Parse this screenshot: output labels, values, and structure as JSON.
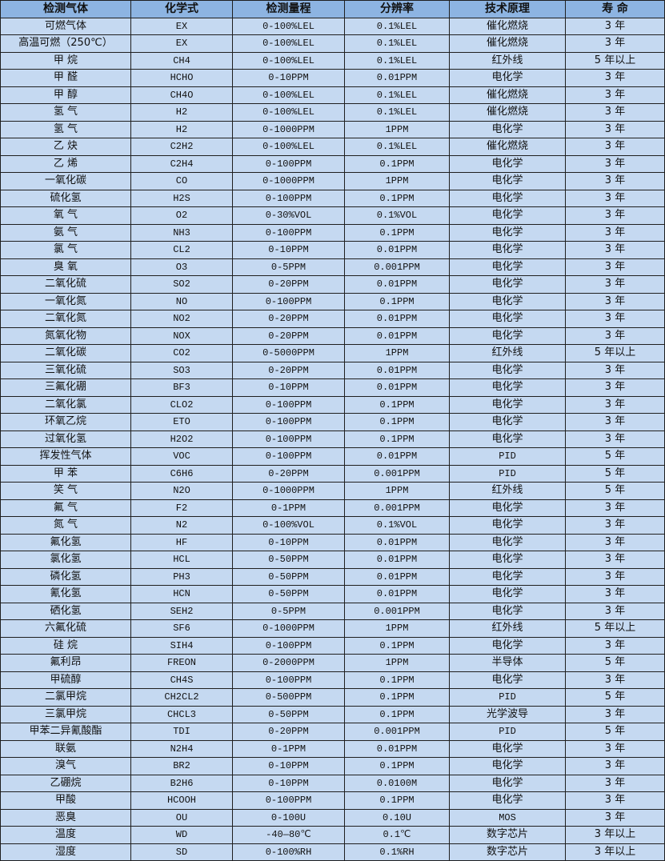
{
  "colors": {
    "header_bg": "#8db4e2",
    "row_bg": "#c5d9f1",
    "border": "#1f1f1f"
  },
  "table": {
    "headers": [
      "检测气体",
      "化学式",
      "检测量程",
      "分辨率",
      "技术原理",
      "寿 命"
    ],
    "rows": [
      [
        "可燃气体",
        "EX",
        "0-100%LEL",
        "0.1%LEL",
        "催化燃烧",
        "3 年"
      ],
      [
        "高温可燃（250℃）",
        "EX",
        "0-100%LEL",
        "0.1%LEL",
        "催化燃烧",
        "3 年"
      ],
      [
        "甲 烷",
        "CH4",
        "0-100%LEL",
        "0.1%LEL",
        "红外线",
        "5 年以上"
      ],
      [
        "甲 醛",
        "HCHO",
        "0-10PPM",
        "0.01PPM",
        "电化学",
        "3 年"
      ],
      [
        "甲 醇",
        "CH4O",
        "0-100%LEL",
        "0.1%LEL",
        "催化燃烧",
        "3 年"
      ],
      [
        "氢 气",
        "H2",
        "0-100%LEL",
        "0.1%LEL",
        "催化燃烧",
        "3 年"
      ],
      [
        "氢 气",
        "H2",
        "0-1000PPM",
        "1PPM",
        "电化学",
        "3 年"
      ],
      [
        "乙 炔",
        "C2H2",
        "0-100%LEL",
        "0.1%LEL",
        "催化燃烧",
        "3 年"
      ],
      [
        "乙 烯",
        "C2H4",
        "0-100PPM",
        "0.1PPM",
        "电化学",
        "3 年"
      ],
      [
        "一氧化碳",
        "CO",
        "0-1000PPM",
        "1PPM",
        "电化学",
        "3 年"
      ],
      [
        "硫化氢",
        "H2S",
        "0-100PPM",
        "0.1PPM",
        "电化学",
        "3 年"
      ],
      [
        "氧 气",
        "O2",
        "0-30%VOL",
        "0.1%VOL",
        "电化学",
        "3 年"
      ],
      [
        "氨 气",
        "NH3",
        "0-100PPM",
        "0.1PPM",
        "电化学",
        "3 年"
      ],
      [
        "氯 气",
        "CL2",
        "0-10PPM",
        "0.01PPM",
        "电化学",
        "3 年"
      ],
      [
        "臭 氧",
        "O3",
        "0-5PPM",
        "0.001PPM",
        "电化学",
        "3 年"
      ],
      [
        "二氧化硫",
        "SO2",
        "0-20PPM",
        "0.01PPM",
        "电化学",
        "3 年"
      ],
      [
        "一氧化氮",
        "NO",
        "0-100PPM",
        "0.1PPM",
        "电化学",
        "3 年"
      ],
      [
        "二氧化氮",
        "NO2",
        "0-20PPM",
        "0.01PPM",
        "电化学",
        "3 年"
      ],
      [
        "氮氧化物",
        "NOX",
        "0-20PPM",
        "0.01PPM",
        "电化学",
        "3 年"
      ],
      [
        "二氧化碳",
        "CO2",
        "0-5000PPM",
        "1PPM",
        "红外线",
        "5 年以上"
      ],
      [
        "三氧化硫",
        "SO3",
        "0-20PPM",
        "0.01PPM",
        "电化学",
        "3 年"
      ],
      [
        "三氟化硼",
        "BF3",
        "0-10PPM",
        "0.01PPM",
        "电化学",
        "3 年"
      ],
      [
        "二氧化氯",
        "CLO2",
        "0-100PPM",
        "0.1PPM",
        "电化学",
        "3 年"
      ],
      [
        "环氧乙烷",
        "ETO",
        "0-100PPM",
        "0.1PPM",
        "电化学",
        "3 年"
      ],
      [
        "过氧化氢",
        "H2O2",
        "0-100PPM",
        "0.1PPM",
        "电化学",
        "3 年"
      ],
      [
        "挥发性气体",
        "VOC",
        "0-100PPM",
        "0.01PPM",
        "PID",
        "5 年"
      ],
      [
        "甲 苯",
        "C6H6",
        "0-20PPM",
        "0.001PPM",
        "PID",
        "5 年"
      ],
      [
        "笑 气",
        "N2O",
        "0-1000PPM",
        "1PPM",
        "红外线",
        "5 年"
      ],
      [
        "氟 气",
        "F2",
        "0-1PPM",
        "0.001PPM",
        "电化学",
        "3 年"
      ],
      [
        "氮 气",
        "N2",
        "0-100%VOL",
        "0.1%VOL",
        "电化学",
        "3 年"
      ],
      [
        "氟化氢",
        "HF",
        "0-10PPM",
        "0.01PPM",
        "电化学",
        "3 年"
      ],
      [
        "氯化氢",
        "HCL",
        "0-50PPM",
        "0.01PPM",
        "电化学",
        "3 年"
      ],
      [
        "磷化氢",
        "PH3",
        "0-50PPM",
        "0.01PPM",
        "电化学",
        "3 年"
      ],
      [
        "氰化氢",
        "HCN",
        "0-50PPM",
        "0.01PPM",
        "电化学",
        "3 年"
      ],
      [
        "硒化氢",
        "SEH2",
        "0-5PPM",
        "0.001PPM",
        "电化学",
        "3 年"
      ],
      [
        "六氟化硫",
        "SF6",
        "0-1000PPM",
        "1PPM",
        "红外线",
        "5 年以上"
      ],
      [
        "硅 烷",
        "SIH4",
        "0-100PPM",
        "0.1PPM",
        "电化学",
        "3 年"
      ],
      [
        "氟利昂",
        "FREON",
        "0-2000PPM",
        "1PPM",
        "半导体",
        "5 年"
      ],
      [
        "甲硫醇",
        "CH4S",
        "0-100PPM",
        "0.1PPM",
        "电化学",
        "3 年"
      ],
      [
        "二氯甲烷",
        "CH2CL2",
        "0-500PPM",
        "0.1PPM",
        "PID",
        "5 年"
      ],
      [
        "三氯甲烷",
        "CHCL3",
        "0-50PPM",
        "0.1PPM",
        "光学波导",
        "3 年"
      ],
      [
        "甲苯二异氰酸酯",
        "TDI",
        "0-20PPM",
        "0.001PPM",
        "PID",
        "5 年"
      ],
      [
        "联氨",
        "N2H4",
        "0-1PPM",
        "0.01PPM",
        "电化学",
        "3 年"
      ],
      [
        "溴气",
        "BR2",
        "0-10PPM",
        "0.1PPM",
        "电化学",
        "3 年"
      ],
      [
        "乙硼烷",
        "B2H6",
        "0-10PPM",
        "0.0100M",
        "电化学",
        "3 年"
      ],
      [
        "甲酸",
        "HCOOH",
        "0-100PPM",
        "0.1PPM",
        "电化学",
        "3 年"
      ],
      [
        "恶臭",
        "OU",
        "0-100U",
        "0.10U",
        "MOS",
        "3 年"
      ],
      [
        "温度",
        "WD",
        "-40—80℃",
        "0.1℃",
        "数字芯片",
        "3 年以上"
      ],
      [
        "湿度",
        "SD",
        "0-100%RH",
        "0.1%RH",
        "数字芯片",
        "3 年以上"
      ]
    ]
  }
}
